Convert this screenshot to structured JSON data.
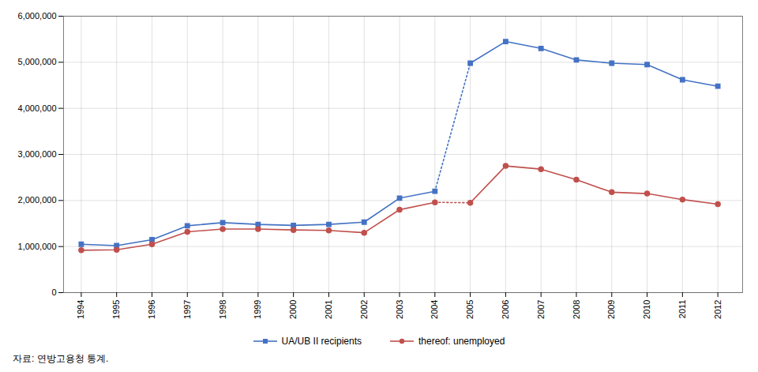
{
  "chart_data": {
    "type": "line",
    "xlim": [
      1993.5,
      2012.7
    ],
    "xticks": [
      1994,
      1995,
      1996,
      1997,
      1998,
      1999,
      2000,
      2001,
      2002,
      2003,
      2004,
      2005,
      2006,
      2007,
      2008,
      2009,
      2010,
      2011,
      2012
    ],
    "ylim": [
      0,
      6000000
    ],
    "yticks": [
      0,
      {
        "value": 1000000,
        "label": "1,000,000"
      },
      {
        "value": 2000000,
        "label": "2,000,000"
      },
      {
        "value": 3000000,
        "label": "3,000,000"
      },
      {
        "value": 4000000,
        "label": "4,000,000"
      },
      {
        "value": 5000000,
        "label": "5,000,000"
      },
      {
        "value": 6000000,
        "label": "6,000,000"
      }
    ],
    "grid": true,
    "legend": "bottom",
    "caption": "자료: 연방고용청 통계.",
    "series": [
      {
        "name": "UA/UB II recipients",
        "color": "#4472C4",
        "marker": "square",
        "line_style": "solid",
        "x": [
          1994,
          1995,
          1996,
          1997,
          1998,
          1999,
          2000,
          2001,
          2002,
          2003,
          2004
        ],
        "values": [
          1050000,
          1020000,
          1150000,
          1450000,
          1520000,
          1480000,
          1460000,
          1480000,
          1530000,
          2050000,
          2200000
        ]
      },
      {
        "color": "#4472C4",
        "line_style": "dotted",
        "x": [
          2004,
          2005
        ],
        "values": [
          2200000,
          4980000
        ]
      },
      {
        "color": "#4472C4",
        "marker": "square",
        "line_style": "solid",
        "x": [
          2005,
          2006,
          2007,
          2008,
          2009,
          2010,
          2011,
          2012
        ],
        "values": [
          4980000,
          5450000,
          5300000,
          5050000,
          4980000,
          4950000,
          4620000,
          4480000
        ]
      },
      {
        "name": "thereof: unemployed",
        "color": "#C0504D",
        "marker": "circle",
        "line_style": "solid",
        "x": [
          1994,
          1995,
          1996,
          1997,
          1998,
          1999,
          2000,
          2001,
          2002,
          2003,
          2004
        ],
        "values": [
          920000,
          930000,
          1050000,
          1320000,
          1380000,
          1380000,
          1360000,
          1350000,
          1300000,
          1800000,
          1960000
        ]
      },
      {
        "color": "#C0504D",
        "line_style": "dotted",
        "x": [
          2004,
          2005
        ],
        "values": [
          1960000,
          1950000
        ]
      },
      {
        "color": "#C0504D",
        "marker": "circle",
        "line_style": "solid",
        "x": [
          2005,
          2006,
          2007,
          2008,
          2009,
          2010,
          2011,
          2012
        ],
        "values": [
          1950000,
          2750000,
          2680000,
          2450000,
          2180000,
          2150000,
          2020000,
          1920000
        ]
      }
    ]
  }
}
